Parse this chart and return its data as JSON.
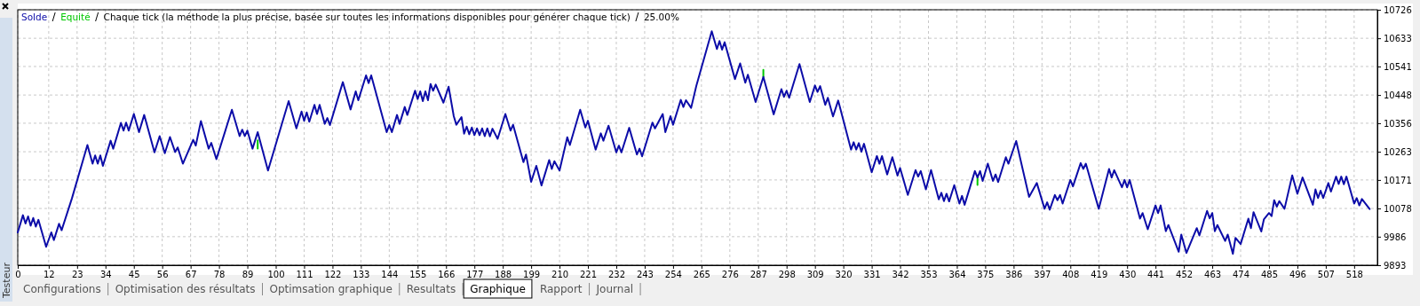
{
  "chart_data": {
    "type": "line",
    "title": "Chaque tick (la méthode la plus précise, basée sur toutes les informations disponibles pour générer chaque tick)",
    "annotations": [
      "25.00%",
      "Testeur",
      "Configurations",
      "Optimisation des résultats",
      "Optimsation graphique",
      "Resultats",
      "Graphique",
      "Rapport",
      "Journal"
    ],
    "xlim": [
      0,
      527
    ],
    "ylim": [
      9893,
      10726
    ],
    "xticks": [
      0,
      12,
      23,
      34,
      45,
      56,
      67,
      78,
      89,
      100,
      111,
      122,
      133,
      144,
      155,
      166,
      177,
      188,
      199,
      210,
      221,
      232,
      243,
      254,
      265,
      276,
      287,
      298,
      309,
      320,
      331,
      342,
      353,
      364,
      375,
      386,
      397,
      408,
      419,
      430,
      441,
      452,
      463,
      474,
      485,
      496,
      507,
      518
    ],
    "yticks": [
      9893,
      9986,
      10078,
      10171,
      10263,
      10356,
      10448,
      10541,
      10633,
      10726
    ],
    "grid": true,
    "legend": "top left",
    "line_style": "solid",
    "marker": "none",
    "series": [
      {
        "name": "Solde",
        "color": "#0c0ca8",
        "x": [
          0,
          2,
          3,
          4,
          5,
          6,
          7,
          8,
          11,
          13,
          14,
          16,
          17,
          21,
          27,
          29,
          30,
          31,
          32,
          33,
          36,
          37,
          40,
          41,
          42,
          43,
          45,
          47,
          49,
          53,
          55,
          57,
          59,
          61,
          62,
          64,
          68,
          69,
          71,
          74,
          75,
          77,
          83,
          86,
          87,
          88,
          89,
          91,
          93,
          97,
          105,
          108,
          110,
          111,
          112,
          113,
          115,
          116,
          117,
          119,
          120,
          121,
          126,
          129,
          131,
          132,
          135,
          136,
          137,
          143,
          144,
          145,
          147,
          148,
          150,
          151,
          154,
          155,
          156,
          157,
          158,
          159,
          160,
          161,
          162,
          165,
          167,
          169,
          170,
          172,
          173,
          174,
          175,
          176,
          177,
          178,
          179,
          180,
          181,
          182,
          183,
          184,
          186,
          189,
          191,
          192,
          196,
          197,
          199,
          201,
          203,
          206,
          207,
          208,
          210,
          213,
          214,
          218,
          220,
          221,
          224,
          226,
          227,
          229,
          232,
          233,
          234,
          237,
          240,
          241,
          242,
          246,
          247,
          250,
          251,
          253,
          254,
          257,
          258,
          259,
          261,
          263,
          269,
          271,
          272,
          273,
          274,
          278,
          280,
          282,
          283,
          286,
          289,
          293,
          296,
          297,
          298,
          299,
          303,
          307,
          309,
          310,
          311,
          313,
          314,
          316,
          318,
          323,
          324,
          325,
          326,
          327,
          328,
          331,
          333,
          334,
          335,
          337,
          339,
          341,
          342,
          345,
          348,
          349,
          350,
          352,
          354,
          357,
          358,
          359,
          360,
          361,
          363,
          365,
          366,
          367,
          371,
          372,
          373,
          374,
          376,
          378,
          379,
          380,
          383,
          384,
          387,
          392,
          395,
          398,
          399,
          400,
          402,
          403,
          404,
          405,
          408,
          409,
          412,
          413,
          414,
          419,
          423,
          424,
          425,
          428,
          429,
          430,
          431,
          435,
          436,
          438,
          441,
          442,
          443,
          445,
          446,
          450,
          451,
          453,
          457,
          458,
          461,
          462,
          463,
          464,
          465,
          468,
          469,
          471,
          472,
          474,
          477,
          478,
          479,
          482,
          483,
          485,
          486,
          487,
          488,
          489,
          491,
          494,
          496,
          498,
          502,
          503,
          504,
          505,
          506,
          508,
          509,
          511,
          512,
          513,
          514,
          515,
          518,
          519,
          520,
          521,
          524
        ],
        "values": [
          10000,
          10056,
          10029,
          10052,
          10022,
          10047,
          10019,
          10041,
          9953,
          10000,
          9975,
          10028,
          10007,
          10111,
          10285,
          10224,
          10251,
          10224,
          10251,
          10217,
          10299,
          10273,
          10357,
          10332,
          10358,
          10332,
          10386,
          10327,
          10383,
          10261,
          10314,
          10258,
          10311,
          10262,
          10277,
          10224,
          10302,
          10283,
          10363,
          10273,
          10292,
          10239,
          10400,
          10314,
          10335,
          10314,
          10332,
          10273,
          10327,
          10202,
          10428,
          10339,
          10394,
          10364,
          10391,
          10361,
          10416,
          10386,
          10416,
          10354,
          10373,
          10350,
          10490,
          10401,
          10460,
          10431,
          10512,
          10487,
          10512,
          10327,
          10350,
          10327,
          10383,
          10354,
          10409,
          10383,
          10462,
          10435,
          10460,
          10428,
          10460,
          10431,
          10484,
          10462,
          10482,
          10423,
          10475,
          10379,
          10351,
          10376,
          10322,
          10345,
          10320,
          10342,
          10317,
          10339,
          10317,
          10339,
          10314,
          10339,
          10313,
          10338,
          10305,
          10386,
          10332,
          10351,
          10229,
          10254,
          10165,
          10217,
          10153,
          10236,
          10207,
          10232,
          10202,
          10310,
          10285,
          10400,
          10342,
          10364,
          10270,
          10323,
          10299,
          10348,
          10261,
          10283,
          10261,
          10341,
          10254,
          10273,
          10248,
          10358,
          10339,
          10386,
          10327,
          10379,
          10351,
          10432,
          10409,
          10431,
          10406,
          10477,
          10656,
          10598,
          10624,
          10596,
          10620,
          10500,
          10551,
          10488,
          10514,
          10425,
          10507,
          10385,
          10467,
          10442,
          10462,
          10439,
          10549,
          10425,
          10479,
          10458,
          10477,
          10416,
          10439,
          10378,
          10430,
          10270,
          10294,
          10270,
          10291,
          10263,
          10289,
          10196,
          10249,
          10224,
          10249,
          10189,
          10245,
          10185,
          10210,
          10122,
          10203,
          10182,
          10200,
          10140,
          10203,
          10108,
          10129,
          10102,
          10126,
          10101,
          10154,
          10094,
          10119,
          10090,
          10200,
          10179,
          10200,
          10168,
          10224,
          10168,
          10189,
          10164,
          10245,
          10224,
          10298,
          10116,
          10161,
          10077,
          10098,
          10074,
          10122,
          10105,
          10122,
          10094,
          10171,
          10150,
          10226,
          10207,
          10224,
          10077,
          10207,
          10179,
          10203,
          10147,
          10171,
          10147,
          10171,
          10045,
          10063,
          10010,
          10088,
          10063,
          10088,
          10004,
          10024,
          9937,
          9993,
          9933,
          10014,
          9990,
          10070,
          10046,
          10063,
          10004,
          10024,
          9972,
          9993,
          9930,
          9982,
          9962,
          10045,
          10014,
          10066,
          10003,
          10042,
          10063,
          10053,
          10105,
          10084,
          10102,
          10077,
          10186,
          10126,
          10179,
          10090,
          10140,
          10112,
          10136,
          10112,
          10161,
          10133,
          10182,
          10158,
          10182,
          10157,
          10182,
          10094,
          10112,
          10088,
          10109,
          10076
        ]
      },
      {
        "name": "Equité",
        "color": "#00c800",
        "x": [
          93,
          93,
          289,
          289,
          372,
          372
        ],
        "values": [
          10300,
          10273,
          10530,
          10507,
          10179,
          10155
        ]
      }
    ]
  }
}
